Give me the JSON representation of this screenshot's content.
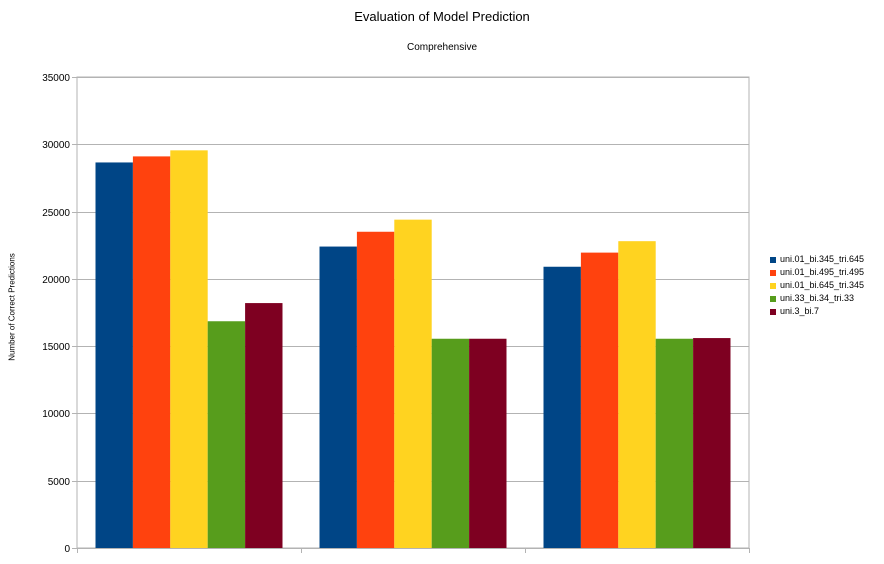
{
  "chart_data": {
    "type": "bar",
    "title": "Evaluation of Model Prediction",
    "subtitle": "Comprehensive",
    "xlabel": "",
    "ylabel": "Number of Correct Predictions",
    "ylim": [
      0,
      35000
    ],
    "yticks": [
      0,
      5000,
      10000,
      15000,
      20000,
      25000,
      30000,
      35000
    ],
    "grid": true,
    "legend_position": "right",
    "categories": [
      "",
      "",
      ""
    ],
    "series": [
      {
        "name": "uni.01_bi.345_tri.645",
        "color": "#004586",
        "values": [
          28650,
          22400,
          20900
        ]
      },
      {
        "name": "uni.01_bi.495_tri.495",
        "color": "#ff420e",
        "values": [
          29100,
          23500,
          21950
        ]
      },
      {
        "name": "uni.01_bi.645_tri.345",
        "color": "#ffd320",
        "values": [
          29550,
          24400,
          22800
        ]
      },
      {
        "name": "uni.33_bi.34_tri.33",
        "color": "#579d1c",
        "values": [
          16850,
          15550,
          15550
        ]
      },
      {
        "name": "uni.3_bi.7",
        "color": "#7e0021",
        "values": [
          18200,
          15550,
          15600
        ]
      }
    ]
  }
}
